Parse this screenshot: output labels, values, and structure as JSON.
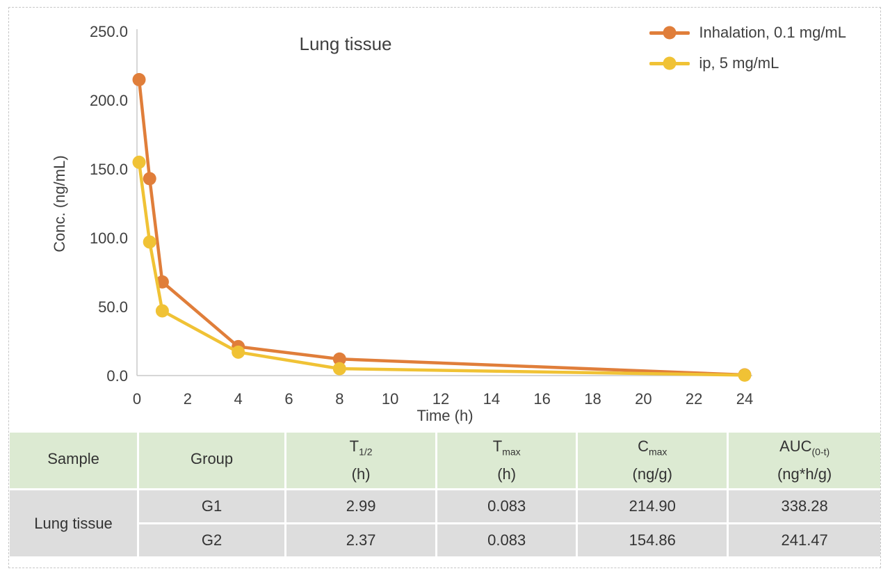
{
  "colors": {
    "accent_orange": "#E07E3A",
    "accent_yellow": "#F0C235",
    "axis": "#C9C9C9",
    "tick_text": "#3F3F3F",
    "table_header_bg": "#DCEAD2",
    "table_cell_bg": "#DDDDDD",
    "frame_dash": "#C6C6C6"
  },
  "chart": {
    "title": "Lung tissue",
    "y_label": "Conc. (ng/mL)",
    "x_label": "Time (h)"
  },
  "chart_data": {
    "type": "line",
    "title": "Lung tissue",
    "xlabel": "Time (h)",
    "ylabel": "Conc. (ng/mL)",
    "xlim": [
      0,
      24
    ],
    "ylim": [
      0,
      250
    ],
    "x_ticks": [
      0,
      2,
      4,
      6,
      8,
      10,
      12,
      14,
      16,
      18,
      20,
      22,
      24
    ],
    "y_ticks": [
      0,
      50,
      100,
      150,
      200,
      250
    ],
    "y_tick_labels": [
      "0.0",
      "50.0",
      "100.0",
      "150.0",
      "200.0",
      "250.0"
    ],
    "grid": false,
    "legend_position": "top-right",
    "series": [
      {
        "name": "Inhalation, 0.1 mg/mL",
        "color": "#E07E3A",
        "marker": "circle",
        "x": [
          0.083,
          0.5,
          1,
          4,
          8,
          24
        ],
        "y": [
          214.9,
          143,
          68,
          21,
          12,
          0.5
        ]
      },
      {
        "name": "ip, 5 mg/mL",
        "color": "#F0C235",
        "marker": "circle",
        "x": [
          0.083,
          0.5,
          1,
          4,
          8,
          24
        ],
        "y": [
          154.9,
          97,
          47,
          17,
          5,
          0.3
        ]
      }
    ]
  },
  "table": {
    "headers": [
      {
        "main": "Sample",
        "sub": "",
        "unit": ""
      },
      {
        "main": "Group",
        "sub": "",
        "unit": ""
      },
      {
        "main": "T",
        "sub": "1/2",
        "unit": "(h)"
      },
      {
        "main": "T",
        "sub": "max",
        "unit": "(h)"
      },
      {
        "main": "C",
        "sub": "max",
        "unit": "(ng/g)"
      },
      {
        "main": "AUC",
        "sub": "(0-t)",
        "unit": "(ng*h/g)"
      }
    ],
    "sample": "Lung tissue",
    "rows": [
      {
        "group": "G1",
        "t12": "2.99",
        "tmax": "0.083",
        "cmax": "214.90",
        "auc": "338.28"
      },
      {
        "group": "G2",
        "t12": "2.37",
        "tmax": "0.083",
        "cmax": "154.86",
        "auc": "241.47"
      }
    ]
  }
}
